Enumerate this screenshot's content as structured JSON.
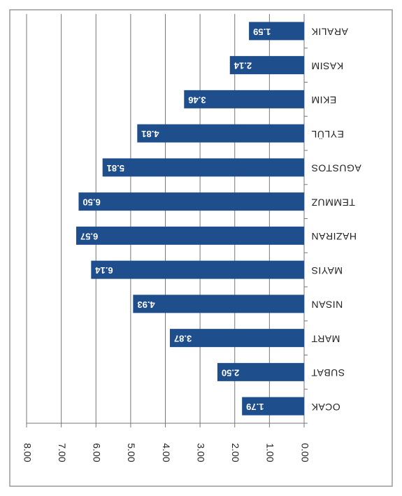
{
  "chart_data": {
    "type": "bar",
    "orientation": "horizontal",
    "rotation": 180,
    "categories": [
      "OCAK",
      "SUBAT",
      "MART",
      "NISAN",
      "MAYIS",
      "HAZIRAN",
      "TEMMUZ",
      "AGUSTOS",
      "EYLÜL",
      "EKIM",
      "KASIM",
      "ARALIK"
    ],
    "values": [
      1.79,
      2.5,
      3.87,
      4.93,
      6.14,
      6.57,
      6.5,
      5.81,
      4.81,
      3.46,
      2.14,
      1.59
    ],
    "value_labels": [
      "1.79",
      "2.50",
      "3.87",
      "4.93",
      "6.14",
      "6.57",
      "6.50",
      "5.81",
      "4.81",
      "3.46",
      "2.14",
      "1.59"
    ],
    "color": "#1f4e8c",
    "xlim": [
      0,
      8
    ],
    "xticks": [
      {
        "value": 0,
        "label": "0.00"
      },
      {
        "value": 1,
        "label": "1.00"
      },
      {
        "value": 2,
        "label": "2.00"
      },
      {
        "value": 3,
        "label": "3.00"
      },
      {
        "value": 4,
        "label": "4.00"
      },
      {
        "value": 5,
        "label": "5.00"
      },
      {
        "value": 6,
        "label": "6.00"
      },
      {
        "value": 7,
        "label": "7.00"
      },
      {
        "value": 8,
        "label": "8.00"
      }
    ],
    "grid": true
  }
}
